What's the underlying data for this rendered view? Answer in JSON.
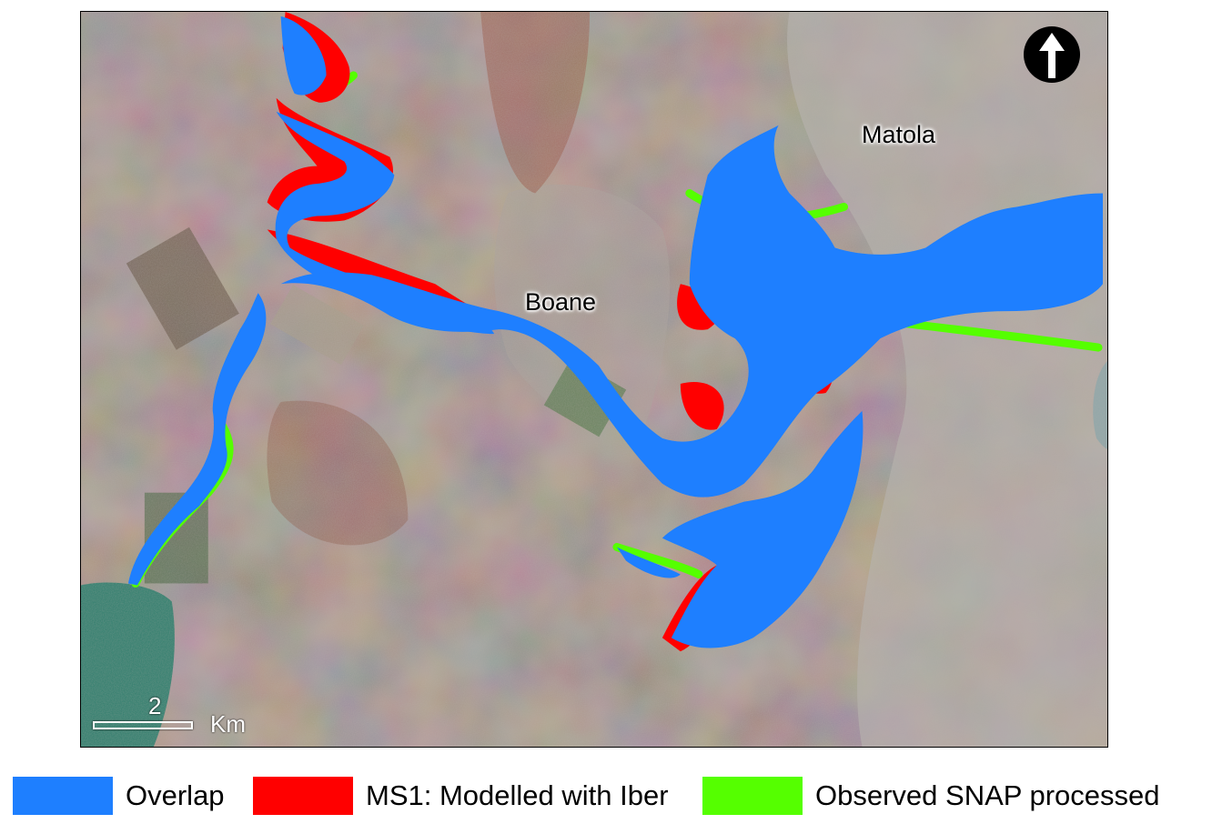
{
  "map": {
    "places": [
      {
        "name": "Matola"
      },
      {
        "name": "Boane"
      }
    ],
    "north_arrow": "north-arrow-icon",
    "scale_bar": {
      "value": "2",
      "unit": "Km"
    }
  },
  "legend": [
    {
      "label": "Overlap",
      "color": "#1e7fff"
    },
    {
      "label": "MS1: Modelled with Iber",
      "color": "#ff0000"
    },
    {
      "label": "Observed SNAP processed",
      "color": "#55ff00"
    }
  ]
}
